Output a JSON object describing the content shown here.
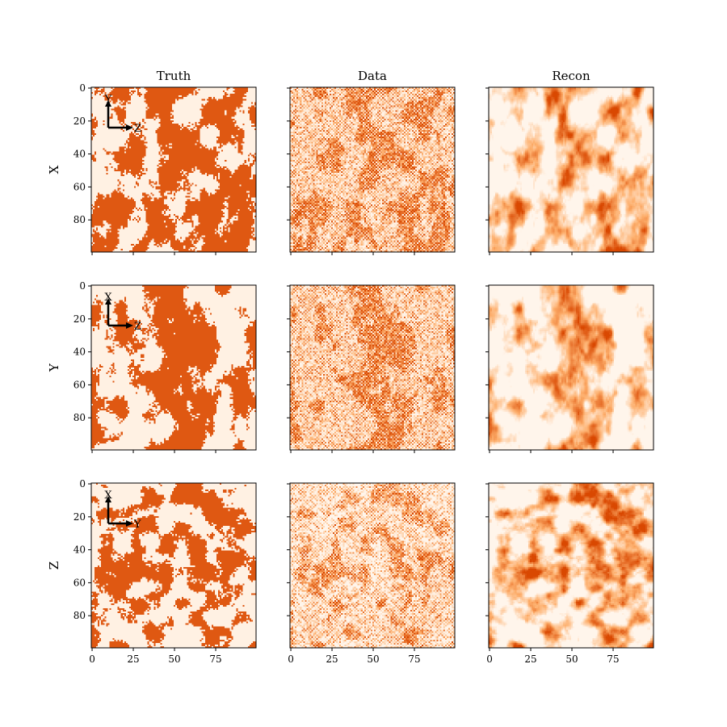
{
  "chart_data": {
    "type": "heatmap",
    "layout": "3x3 grid of 2D slices",
    "columns": [
      "Truth",
      "Data",
      "Recon"
    ],
    "rows": [
      {
        "label": "X",
        "axis_marker": {
          "vertical": "Y",
          "horizontal": "Z"
        }
      },
      {
        "label": "Y",
        "axis_marker": {
          "vertical": "X",
          "horizontal": "Z"
        }
      },
      {
        "label": "Z",
        "axis_marker": {
          "vertical": "X",
          "horizontal": "Y"
        }
      }
    ],
    "grid_size": 100,
    "xlim": [
      0,
      100
    ],
    "ylim": [
      100,
      0
    ],
    "x_ticks": [
      "0",
      "25",
      "50",
      "75"
    ],
    "y_ticks": [
      "0",
      "20",
      "40",
      "60",
      "80"
    ],
    "colormap": {
      "low": "#fff5eb",
      "mid": "#fdae6b",
      "high": "#d94801"
    },
    "grid": false,
    "legend": "none",
    "field_description": "binary-like porous medium slices; Data panels are noisy checkerboard-sampled observations; Recon panels are smooth reconstructions"
  }
}
